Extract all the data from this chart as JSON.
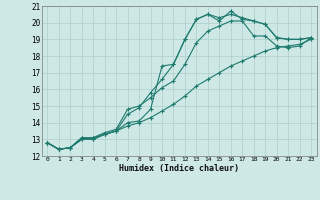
{
  "xlabel": "Humidex (Indice chaleur)",
  "bg_color": "#cde8e5",
  "grid_color": "#aecfcc",
  "line_color": "#1e7a6e",
  "xlim": [
    -0.5,
    23.5
  ],
  "ylim": [
    12,
    21
  ],
  "xticks": [
    0,
    1,
    2,
    3,
    4,
    5,
    6,
    7,
    8,
    9,
    10,
    11,
    12,
    13,
    14,
    15,
    16,
    17,
    18,
    19,
    20,
    21,
    22,
    23
  ],
  "yticks": [
    12,
    13,
    14,
    15,
    16,
    17,
    18,
    19,
    20,
    21
  ],
  "series": [
    [
      12.8,
      12.4,
      12.5,
      13.1,
      13.1,
      13.3,
      13.5,
      14.0,
      14.1,
      14.8,
      17.4,
      17.5,
      19.0,
      20.2,
      20.5,
      20.1,
      20.7,
      20.2,
      20.1,
      19.9,
      19.1,
      19.0,
      19.0,
      19.1
    ],
    [
      12.8,
      12.4,
      12.5,
      13.1,
      13.0,
      13.3,
      13.5,
      14.5,
      14.9,
      15.8,
      16.6,
      17.5,
      19.0,
      20.2,
      20.5,
      20.3,
      20.5,
      20.3,
      20.1,
      19.9,
      19.1,
      19.0,
      19.0,
      19.1
    ],
    [
      12.8,
      12.4,
      12.5,
      13.0,
      13.1,
      13.4,
      13.6,
      14.8,
      15.0,
      15.5,
      16.1,
      16.5,
      17.5,
      18.8,
      19.5,
      19.8,
      20.1,
      20.1,
      19.2,
      19.2,
      18.6,
      18.5,
      18.6,
      19.1
    ],
    [
      12.8,
      12.4,
      12.5,
      13.0,
      13.0,
      13.3,
      13.5,
      13.8,
      14.0,
      14.3,
      14.7,
      15.1,
      15.6,
      16.2,
      16.6,
      17.0,
      17.4,
      17.7,
      18.0,
      18.3,
      18.5,
      18.6,
      18.7,
      19.0
    ]
  ]
}
